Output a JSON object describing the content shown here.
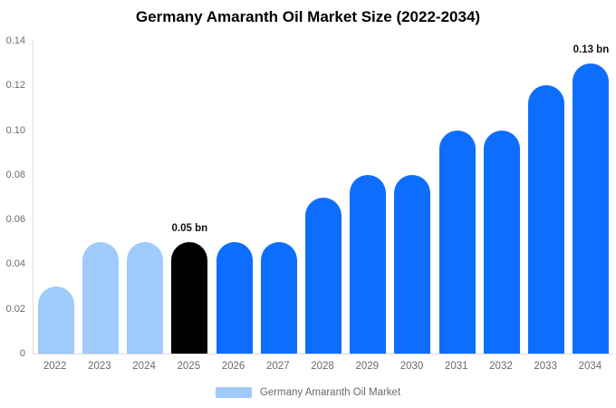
{
  "page_title": "Germany Amaranth Oil Market Size (2022-2034)",
  "chart_data": {
    "type": "bar",
    "title": "Germany Amaranth Oil Market Size (2022-2034)",
    "xlabel": "",
    "ylabel": "",
    "categories": [
      "2022",
      "2023",
      "2024",
      "2025",
      "2026",
      "2027",
      "2028",
      "2029",
      "2030",
      "2031",
      "2032",
      "2033",
      "2034"
    ],
    "values": [
      0.03,
      0.05,
      0.05,
      0.05,
      0.05,
      0.05,
      0.07,
      0.08,
      0.08,
      0.1,
      0.1,
      0.12,
      0.13
    ],
    "unit": "bn",
    "ylim": [
      0,
      0.14
    ],
    "ytick_labels": [
      "0",
      "0.02",
      "0.04",
      "0.06",
      "0.08",
      "0.10",
      "0.12",
      "0.14"
    ],
    "ytick_values": [
      0,
      0.02,
      0.04,
      0.06,
      0.08,
      0.1,
      0.12,
      0.14
    ],
    "grid": false,
    "bar_colors": [
      "#9fcbfa",
      "#9fcbfa",
      "#9fcbfa",
      "#000000",
      "#0d6efd",
      "#0d6efd",
      "#0d6efd",
      "#0d6efd",
      "#0d6efd",
      "#0d6efd",
      "#0d6efd",
      "#0d6efd",
      "#0d6efd"
    ],
    "annotations": [
      {
        "category": "2025",
        "text": "0.05 bn"
      },
      {
        "category": "2034",
        "text": "0.13 bn"
      }
    ],
    "legend": {
      "position": "bottom",
      "label": "Germany Amaranth Oil Market",
      "swatch_color": "#9fcbfa"
    },
    "colors": {
      "past_bars": "#9fcbfa",
      "highlight_bar": "#000000",
      "forecast_bars": "#0d6efd",
      "axis_line": "#dddddd",
      "axis_text": "#6a6a6a",
      "annotation_text": "#111111",
      "background": "#ffffff"
    }
  }
}
